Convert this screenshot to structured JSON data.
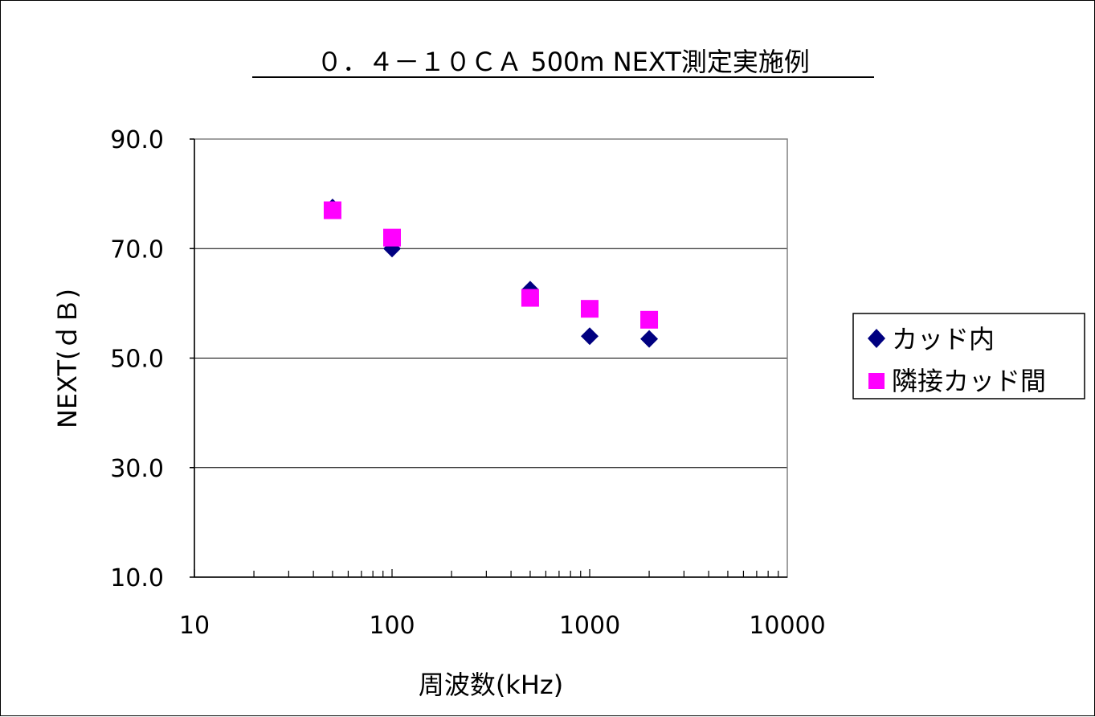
{
  "chart_data": {
    "type": "scatter",
    "title": "０．４－１０ＣＡ 500m NEXT測定実施例",
    "xlabel": "周波数(kHz)",
    "ylabel": "NEXT(ｄＢ)",
    "x_scale": "log",
    "xlim": [
      10,
      10000
    ],
    "ylim": [
      10,
      90
    ],
    "x_ticks": [
      "10",
      "100",
      "1000",
      "10000"
    ],
    "y_ticks": [
      "10.0",
      "30.0",
      "50.0",
      "70.0",
      "90.0"
    ],
    "grid": "horizontal major",
    "legend_position": "right",
    "series": [
      {
        "name": "カッド内",
        "marker": "diamond",
        "color": "#000080",
        "points": [
          {
            "x": 50,
            "y": 77.5
          },
          {
            "x": 100,
            "y": 70.0
          },
          {
            "x": 500,
            "y": 62.5
          },
          {
            "x": 1000,
            "y": 54.0
          },
          {
            "x": 2000,
            "y": 53.5
          }
        ]
      },
      {
        "name": "隣接カッド間",
        "marker": "square",
        "color": "#FF00FF",
        "points": [
          {
            "x": 50,
            "y": 77.0
          },
          {
            "x": 100,
            "y": 72.0
          },
          {
            "x": 500,
            "y": 61.0
          },
          {
            "x": 1000,
            "y": 59.0
          },
          {
            "x": 2000,
            "y": 57.0
          }
        ]
      }
    ]
  }
}
